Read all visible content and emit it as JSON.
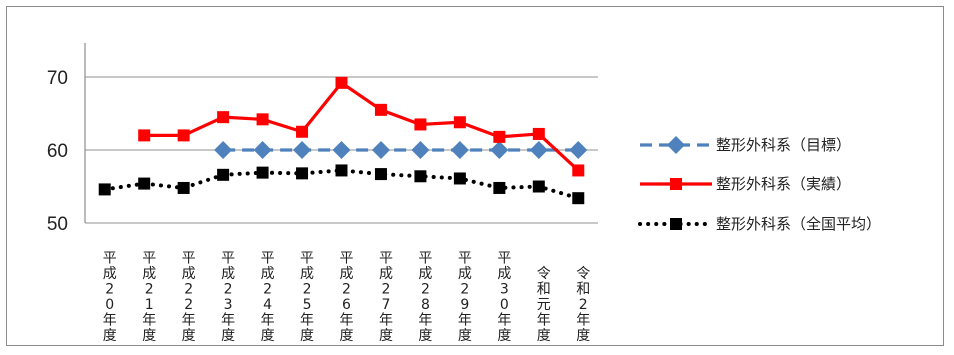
{
  "chart_data": {
    "type": "line",
    "categories": [
      "平成20年度",
      "平成21年度",
      "平成22年度",
      "平成23年度",
      "平成24年度",
      "平成25年度",
      "平成26年度",
      "平成27年度",
      "平成28年度",
      "平成29年度",
      "平成30年度",
      "令和元年度",
      "令和2年度"
    ],
    "series": [
      {
        "name": "整形外科系（目標）",
        "color": "#4f81bd",
        "style": "dashed",
        "marker": "diamond",
        "values": [
          null,
          null,
          null,
          60,
          60,
          60,
          60,
          60,
          60,
          60,
          60,
          60,
          60
        ]
      },
      {
        "name": "整形外科系（実績）",
        "color": "#ff0000",
        "style": "solid",
        "marker": "square",
        "values": [
          null,
          62,
          62,
          64.5,
          64.2,
          62.5,
          69.2,
          65.5,
          63.5,
          63.8,
          61.8,
          62.2,
          57.2
        ]
      },
      {
        "name": "整形外科系（全国平均）",
        "color": "#000000",
        "style": "dotted",
        "marker": "square",
        "values": [
          54.6,
          55.4,
          54.8,
          56.6,
          56.9,
          56.8,
          57.2,
          56.7,
          56.4,
          56.1,
          54.8,
          55.0,
          53.4
        ]
      }
    ],
    "yticks": [
      50,
      60,
      70
    ],
    "ylim": [
      50,
      70
    ],
    "grid": true,
    "legend_position": "right"
  }
}
